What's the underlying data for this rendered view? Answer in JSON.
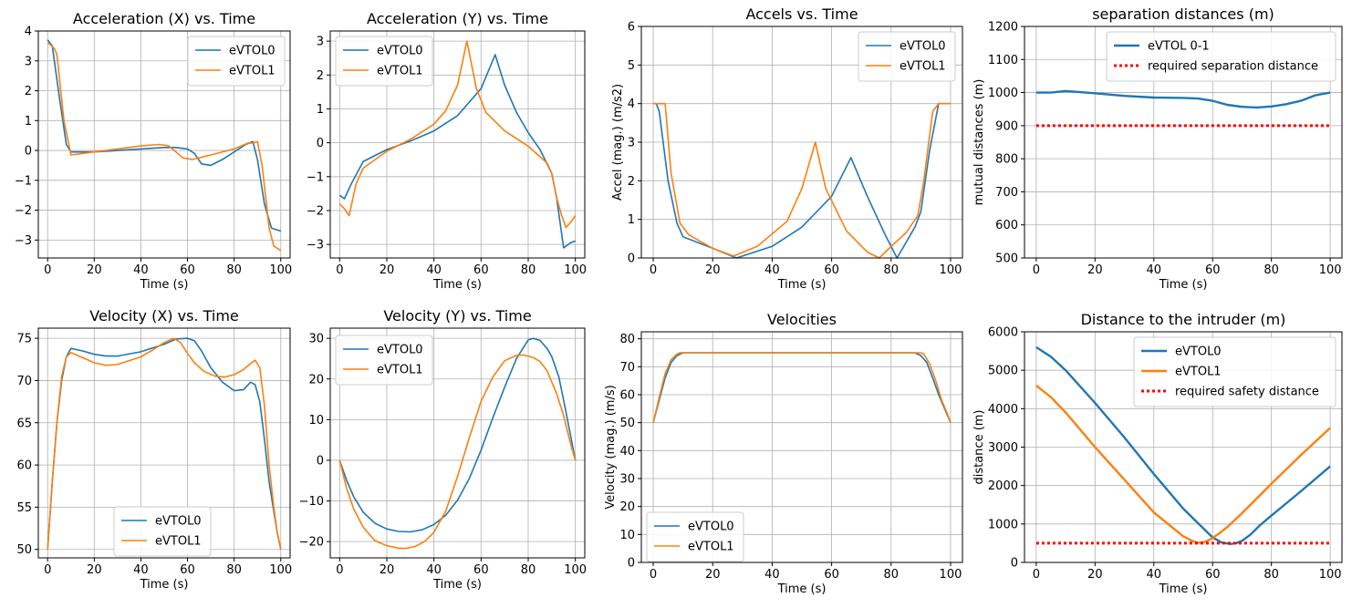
{
  "chart_data": [
    {
      "type": "line",
      "title": "Acceleration (X) vs. Time",
      "xlabel": "Time (s)",
      "ylabel": "",
      "xlim": [
        -4,
        104
      ],
      "ylim": [
        -3.6,
        4.0
      ],
      "xticks": [
        0,
        20,
        40,
        60,
        80,
        100
      ],
      "yticks": [
        -3,
        -2,
        -1,
        0,
        1,
        2,
        3,
        4
      ],
      "grid": true,
      "legend": "top-right",
      "series": [
        {
          "name": "eVTOL0",
          "color": "#1f77b4",
          "x": [
            0,
            2,
            5,
            8,
            10,
            20,
            30,
            40,
            50,
            55,
            60,
            63,
            66,
            70,
            75,
            80,
            85,
            88,
            90,
            93,
            96,
            100
          ],
          "y": [
            3.7,
            3.5,
            1.8,
            0.2,
            -0.05,
            -0.05,
            0.0,
            0.05,
            0.1,
            0.1,
            0.05,
            -0.1,
            -0.45,
            -0.5,
            -0.3,
            -0.05,
            0.2,
            0.3,
            -0.3,
            -1.8,
            -2.6,
            -2.7
          ]
        },
        {
          "name": "eVTOL1",
          "color": "#ff7f0e",
          "x": [
            0,
            1,
            3,
            4,
            7,
            10,
            20,
            30,
            40,
            48,
            52,
            55,
            58,
            62,
            65,
            70,
            80,
            86,
            88,
            90,
            92,
            95,
            97,
            100
          ],
          "y": [
            3.6,
            3.55,
            3.4,
            3.2,
            1.0,
            -0.15,
            -0.05,
            0.05,
            0.15,
            0.2,
            0.15,
            -0.05,
            -0.25,
            -0.3,
            -0.25,
            -0.15,
            0.05,
            0.25,
            0.25,
            0.3,
            -0.5,
            -2.6,
            -3.2,
            -3.35
          ]
        }
      ]
    },
    {
      "type": "line",
      "title": "Acceleration (Y) vs. Time",
      "xlabel": "Time (s)",
      "ylabel": "",
      "xlim": [
        -4,
        104
      ],
      "ylim": [
        -3.4,
        3.3
      ],
      "xticks": [
        0,
        20,
        40,
        60,
        80,
        100
      ],
      "yticks": [
        -3,
        -2,
        -1,
        0,
        1,
        2,
        3
      ],
      "grid": true,
      "legend": "top-left",
      "series": [
        {
          "name": "eVTOL0",
          "color": "#1f77b4",
          "x": [
            0,
            2,
            5,
            10,
            20,
            30,
            40,
            50,
            60,
            66,
            70,
            75,
            80,
            85,
            90,
            92,
            95,
            98,
            100
          ],
          "y": [
            -1.55,
            -1.65,
            -1.2,
            -0.55,
            -0.2,
            0.05,
            0.35,
            0.8,
            1.6,
            2.6,
            1.7,
            0.9,
            0.3,
            -0.2,
            -0.9,
            -1.6,
            -3.1,
            -2.95,
            -2.9
          ]
        },
        {
          "name": "eVTOL1",
          "color": "#ff7f0e",
          "x": [
            0,
            2,
            4,
            7,
            10,
            20,
            30,
            40,
            45,
            50,
            54,
            58,
            62,
            70,
            80,
            88,
            90,
            92,
            94,
            96,
            98,
            100
          ],
          "y": [
            -1.8,
            -1.95,
            -2.15,
            -1.2,
            -0.75,
            -0.25,
            0.1,
            0.55,
            0.95,
            1.7,
            3.0,
            1.6,
            0.9,
            0.35,
            -0.1,
            -0.6,
            -0.9,
            -1.6,
            -2.1,
            -2.5,
            -2.35,
            -2.15
          ]
        }
      ]
    },
    {
      "type": "line",
      "title": "Accels vs. Time",
      "xlabel": "Time (s)",
      "ylabel": "Accel (mag.) (m/s2)",
      "xlim": [
        -4,
        104
      ],
      "ylim": [
        0,
        6
      ],
      "xticks": [
        0,
        20,
        40,
        60,
        80,
        100
      ],
      "yticks": [
        0,
        1,
        2,
        3,
        4,
        5,
        6
      ],
      "grid": true,
      "legend": "top-right",
      "series": [
        {
          "name": "eVTOL0",
          "color": "#1f77b4",
          "x": [
            0,
            1,
            2,
            5,
            8,
            10,
            20,
            28,
            40,
            50,
            60,
            66.5,
            72,
            78,
            82,
            85,
            88,
            90,
            93,
            96,
            100
          ],
          "y": [
            4.0,
            4.0,
            3.8,
            2.0,
            0.9,
            0.55,
            0.25,
            0.0,
            0.3,
            0.8,
            1.6,
            2.6,
            1.6,
            0.6,
            0.0,
            0.4,
            0.8,
            1.2,
            2.8,
            4.0,
            4.0
          ]
        },
        {
          "name": "eVTOL1",
          "color": "#ff7f0e",
          "x": [
            0,
            2,
            4,
            6,
            9,
            12,
            20,
            27,
            35,
            45,
            50,
            54.5,
            58,
            65,
            72,
            76,
            80,
            85,
            89,
            91,
            94,
            96,
            100
          ],
          "y": [
            4.0,
            4.0,
            4.0,
            2.2,
            0.9,
            0.6,
            0.25,
            0.05,
            0.3,
            0.95,
            1.8,
            3.0,
            1.8,
            0.7,
            0.15,
            0.0,
            0.3,
            0.65,
            1.1,
            2.0,
            3.8,
            4.0,
            4.0
          ]
        }
      ]
    },
    {
      "type": "line",
      "title": "separation distances (m)",
      "xlabel": "Time (s)",
      "ylabel": "mutual distances (m)",
      "xlim": [
        -4,
        104
      ],
      "ylim": [
        500,
        1200
      ],
      "xticks": [
        0,
        20,
        40,
        60,
        80,
        100
      ],
      "yticks": [
        500,
        600,
        700,
        800,
        900,
        1000,
        1100,
        1200
      ],
      "grid": true,
      "legend": "top-center",
      "series": [
        {
          "name": "eVTOL 0-1",
          "color": "#1f77b4",
          "x": [
            0,
            5,
            10,
            20,
            30,
            40,
            50,
            55,
            60,
            65,
            70,
            75,
            80,
            85,
            90,
            95,
            100
          ],
          "y": [
            1000,
            1000,
            1005,
            998,
            990,
            985,
            984,
            982,
            975,
            963,
            957,
            955,
            958,
            965,
            975,
            992,
            1000
          ]
        },
        {
          "name": "required separation distance",
          "color": "#ff0000",
          "x": [
            0,
            100
          ],
          "y": [
            900,
            900
          ]
        }
      ]
    },
    {
      "type": "line",
      "title": "Velocity (X) vs. Time",
      "xlabel": "Time (s)",
      "ylabel": "",
      "xlim": [
        -4,
        104
      ],
      "ylim": [
        49.0,
        76.2
      ],
      "xticks": [
        0,
        20,
        40,
        60,
        80,
        100
      ],
      "yticks": [
        50,
        55,
        60,
        65,
        70,
        75
      ],
      "grid": true,
      "legend": "bottom-center",
      "series": [
        {
          "name": "eVTOL0",
          "color": "#1f77b4",
          "x": [
            0,
            2,
            4,
            6,
            8,
            10,
            15,
            20,
            25,
            30,
            40,
            50,
            55,
            60,
            63,
            66,
            70,
            75,
            80,
            84,
            87,
            89,
            91,
            93,
            95,
            97,
            98.5,
            100
          ],
          "y": [
            50,
            58,
            65,
            70,
            72.8,
            73.8,
            73.5,
            73.1,
            72.9,
            72.9,
            73.4,
            74.3,
            74.9,
            75.0,
            74.7,
            73.5,
            71.5,
            69.8,
            68.8,
            68.9,
            69.8,
            69.5,
            67.5,
            63,
            58,
            54.5,
            52,
            50
          ]
        },
        {
          "name": "eVTOL1",
          "color": "#ff7f0e",
          "x": [
            0,
            2,
            4,
            6,
            8,
            10,
            15,
            20,
            25,
            30,
            40,
            45,
            50,
            54,
            57,
            60,
            63,
            67,
            72,
            76,
            80,
            84,
            87,
            89,
            91,
            93,
            95,
            97,
            98.5,
            100
          ],
          "y": [
            50,
            58,
            65,
            70.5,
            72.8,
            73.3,
            72.7,
            72.1,
            71.8,
            71.9,
            72.8,
            73.6,
            74.5,
            75.0,
            74.5,
            73.2,
            72.1,
            71.1,
            70.5,
            70.4,
            70.7,
            71.3,
            72.0,
            72.4,
            71.5,
            67,
            60,
            55,
            52,
            50
          ]
        }
      ]
    },
    {
      "type": "line",
      "title": "Velocity (Y) vs. Time",
      "xlabel": "Time (s)",
      "ylabel": "",
      "xlim": [
        -4,
        104
      ],
      "ylim": [
        -24,
        32.5
      ],
      "xticks": [
        0,
        20,
        40,
        60,
        80,
        100
      ],
      "yticks": [
        -20,
        -10,
        0,
        10,
        20,
        30
      ],
      "grid": true,
      "legend": "top-left",
      "series": [
        {
          "name": "eVTOL0",
          "color": "#1f77b4",
          "x": [
            0,
            3,
            6,
            10,
            15,
            20,
            25,
            30,
            35,
            40,
            45,
            50,
            55,
            60,
            65,
            70,
            75,
            80,
            82,
            85,
            88,
            90,
            93,
            96,
            100
          ],
          "y": [
            0,
            -5,
            -9,
            -12.8,
            -15.5,
            -16.9,
            -17.5,
            -17.6,
            -17.1,
            -15.8,
            -13.5,
            -9.8,
            -4.5,
            2.5,
            10.5,
            18,
            25,
            29.6,
            30,
            29.5,
            27.5,
            25.5,
            20.5,
            12,
            0
          ]
        },
        {
          "name": "eVTOL1",
          "color": "#ff7f0e",
          "x": [
            0,
            3,
            6,
            10,
            15,
            20,
            25,
            28,
            32,
            36,
            40,
            45,
            50,
            55,
            60,
            65,
            70,
            75,
            78,
            82,
            85,
            88,
            92,
            95,
            98,
            100
          ],
          "y": [
            0,
            -7,
            -12,
            -16.5,
            -19.8,
            -21,
            -21.6,
            -21.7,
            -21.2,
            -20,
            -17.7,
            -12.5,
            -4,
            5.5,
            14.5,
            20.5,
            24.5,
            25.8,
            25.9,
            25.3,
            24.3,
            22,
            16.5,
            11,
            4,
            0
          ]
        }
      ]
    },
    {
      "type": "line",
      "title": "Velocities",
      "xlabel": "Time (s)",
      "ylabel": "Velocity (mag.) (m/s)",
      "xlim": [
        -4,
        104
      ],
      "ylim": [
        0,
        82.5
      ],
      "xticks": [
        0,
        20,
        40,
        60,
        80,
        100
      ],
      "yticks": [
        0,
        10,
        20,
        30,
        40,
        50,
        60,
        70,
        80
      ],
      "grid": true,
      "legend": "bottom-left",
      "series": [
        {
          "name": "eVTOL0",
          "color": "#1f77b4",
          "x": [
            0,
            2,
            4,
            6,
            8,
            10,
            12,
            88,
            90,
            92,
            94,
            96,
            98,
            100
          ],
          "y": [
            50,
            58,
            66,
            71.5,
            74,
            75,
            75,
            75,
            74,
            71.5,
            66,
            60,
            55,
            50
          ]
        },
        {
          "name": "eVTOL1",
          "color": "#ff7f0e",
          "x": [
            0,
            2,
            4,
            6,
            8,
            9,
            11,
            89,
            90,
            91,
            93,
            95,
            97,
            99,
            100
          ],
          "y": [
            50,
            59,
            67.5,
            72.5,
            74.5,
            75,
            75,
            75,
            75,
            74.5,
            71,
            65,
            58,
            53,
            50
          ]
        }
      ]
    },
    {
      "type": "line",
      "title": "Distance to the intruder (m)",
      "xlabel": "Time (s)",
      "ylabel": "distance (m)",
      "xlim": [
        -4,
        104
      ],
      "ylim": [
        0,
        6000
      ],
      "xticks": [
        0,
        20,
        40,
        60,
        80,
        100
      ],
      "yticks": [
        0,
        1000,
        2000,
        3000,
        4000,
        5000,
        6000
      ],
      "grid": true,
      "legend": "top-right",
      "series": [
        {
          "name": "eVTOL0",
          "color": "#1f77b4",
          "x": [
            0,
            5,
            10,
            20,
            30,
            40,
            50,
            60,
            63,
            66,
            68,
            70,
            73,
            76,
            80,
            90,
            100
          ],
          "y": [
            5600,
            5350,
            5000,
            4150,
            3250,
            2300,
            1400,
            650,
            520,
            480,
            500,
            560,
            730,
            960,
            1220,
            1850,
            2500
          ]
        },
        {
          "name": "eVTOL1",
          "color": "#ff7f0e",
          "x": [
            0,
            5,
            10,
            20,
            30,
            40,
            50,
            53,
            55,
            57,
            59,
            62,
            65,
            70,
            80,
            90,
            100
          ],
          "y": [
            4600,
            4300,
            3900,
            3000,
            2150,
            1300,
            680,
            560,
            510,
            530,
            590,
            740,
            920,
            1280,
            2050,
            2790,
            3500
          ]
        },
        {
          "name": "required safety distance",
          "color": "#ff0000",
          "x": [
            0,
            100
          ],
          "y": [
            500,
            500
          ]
        }
      ]
    }
  ]
}
